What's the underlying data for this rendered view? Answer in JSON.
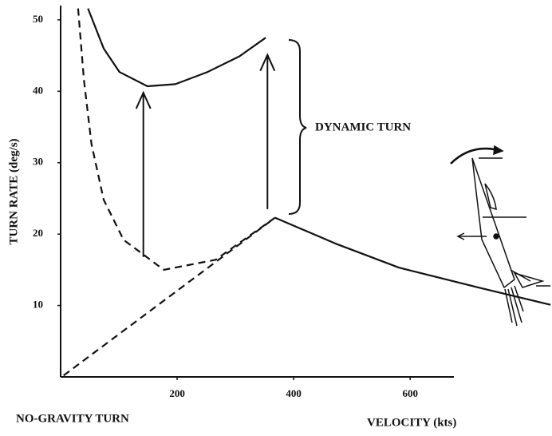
{
  "chart_data": {
    "type": "line",
    "y_label": "TURN RATE (deg/s)",
    "x_label": "VELOCITY (kts)",
    "annotations": [
      "DYNAMIC TURN",
      "NO-GRAVITY TURN"
    ],
    "xlim": [
      0,
      675
    ],
    "ylim": [
      0,
      52
    ],
    "xticks": [
      200,
      400,
      600
    ],
    "yticks": [
      10,
      20,
      30,
      40,
      50
    ],
    "series": [
      {
        "color": "#111111",
        "dashed": false,
        "x": [
          47,
          74,
          101,
          149,
          197,
          252,
          307,
          352
        ],
        "values": [
          51.6,
          46,
          42.7,
          40.7,
          41,
          42.7,
          44.9,
          47.5
        ]
      },
      {
        "color": "#111111",
        "dashed": true,
        "x": [
          30,
          40,
          53,
          74,
          108,
          177,
          266,
          368
        ],
        "values": [
          51.6,
          41.6,
          32.6,
          24.8,
          19.2,
          15,
          16.4,
          22.3
        ]
      },
      {
        "color": "#111111",
        "dashed": true,
        "x": [
          5,
          368
        ],
        "values": [
          0.2,
          22.3
        ]
      },
      {
        "color": "#111111",
        "dashed": false,
        "x": [
          368,
          471,
          581,
          718,
          841
        ],
        "values": [
          22.3,
          18.7,
          15.3,
          12.5,
          10.1
        ]
      }
    ],
    "arrows": [
      {
        "x": 142,
        "from": 16.8,
        "to": 39.8
      },
      {
        "x": 355,
        "from": 23.5,
        "to": 45.1
      }
    ]
  }
}
